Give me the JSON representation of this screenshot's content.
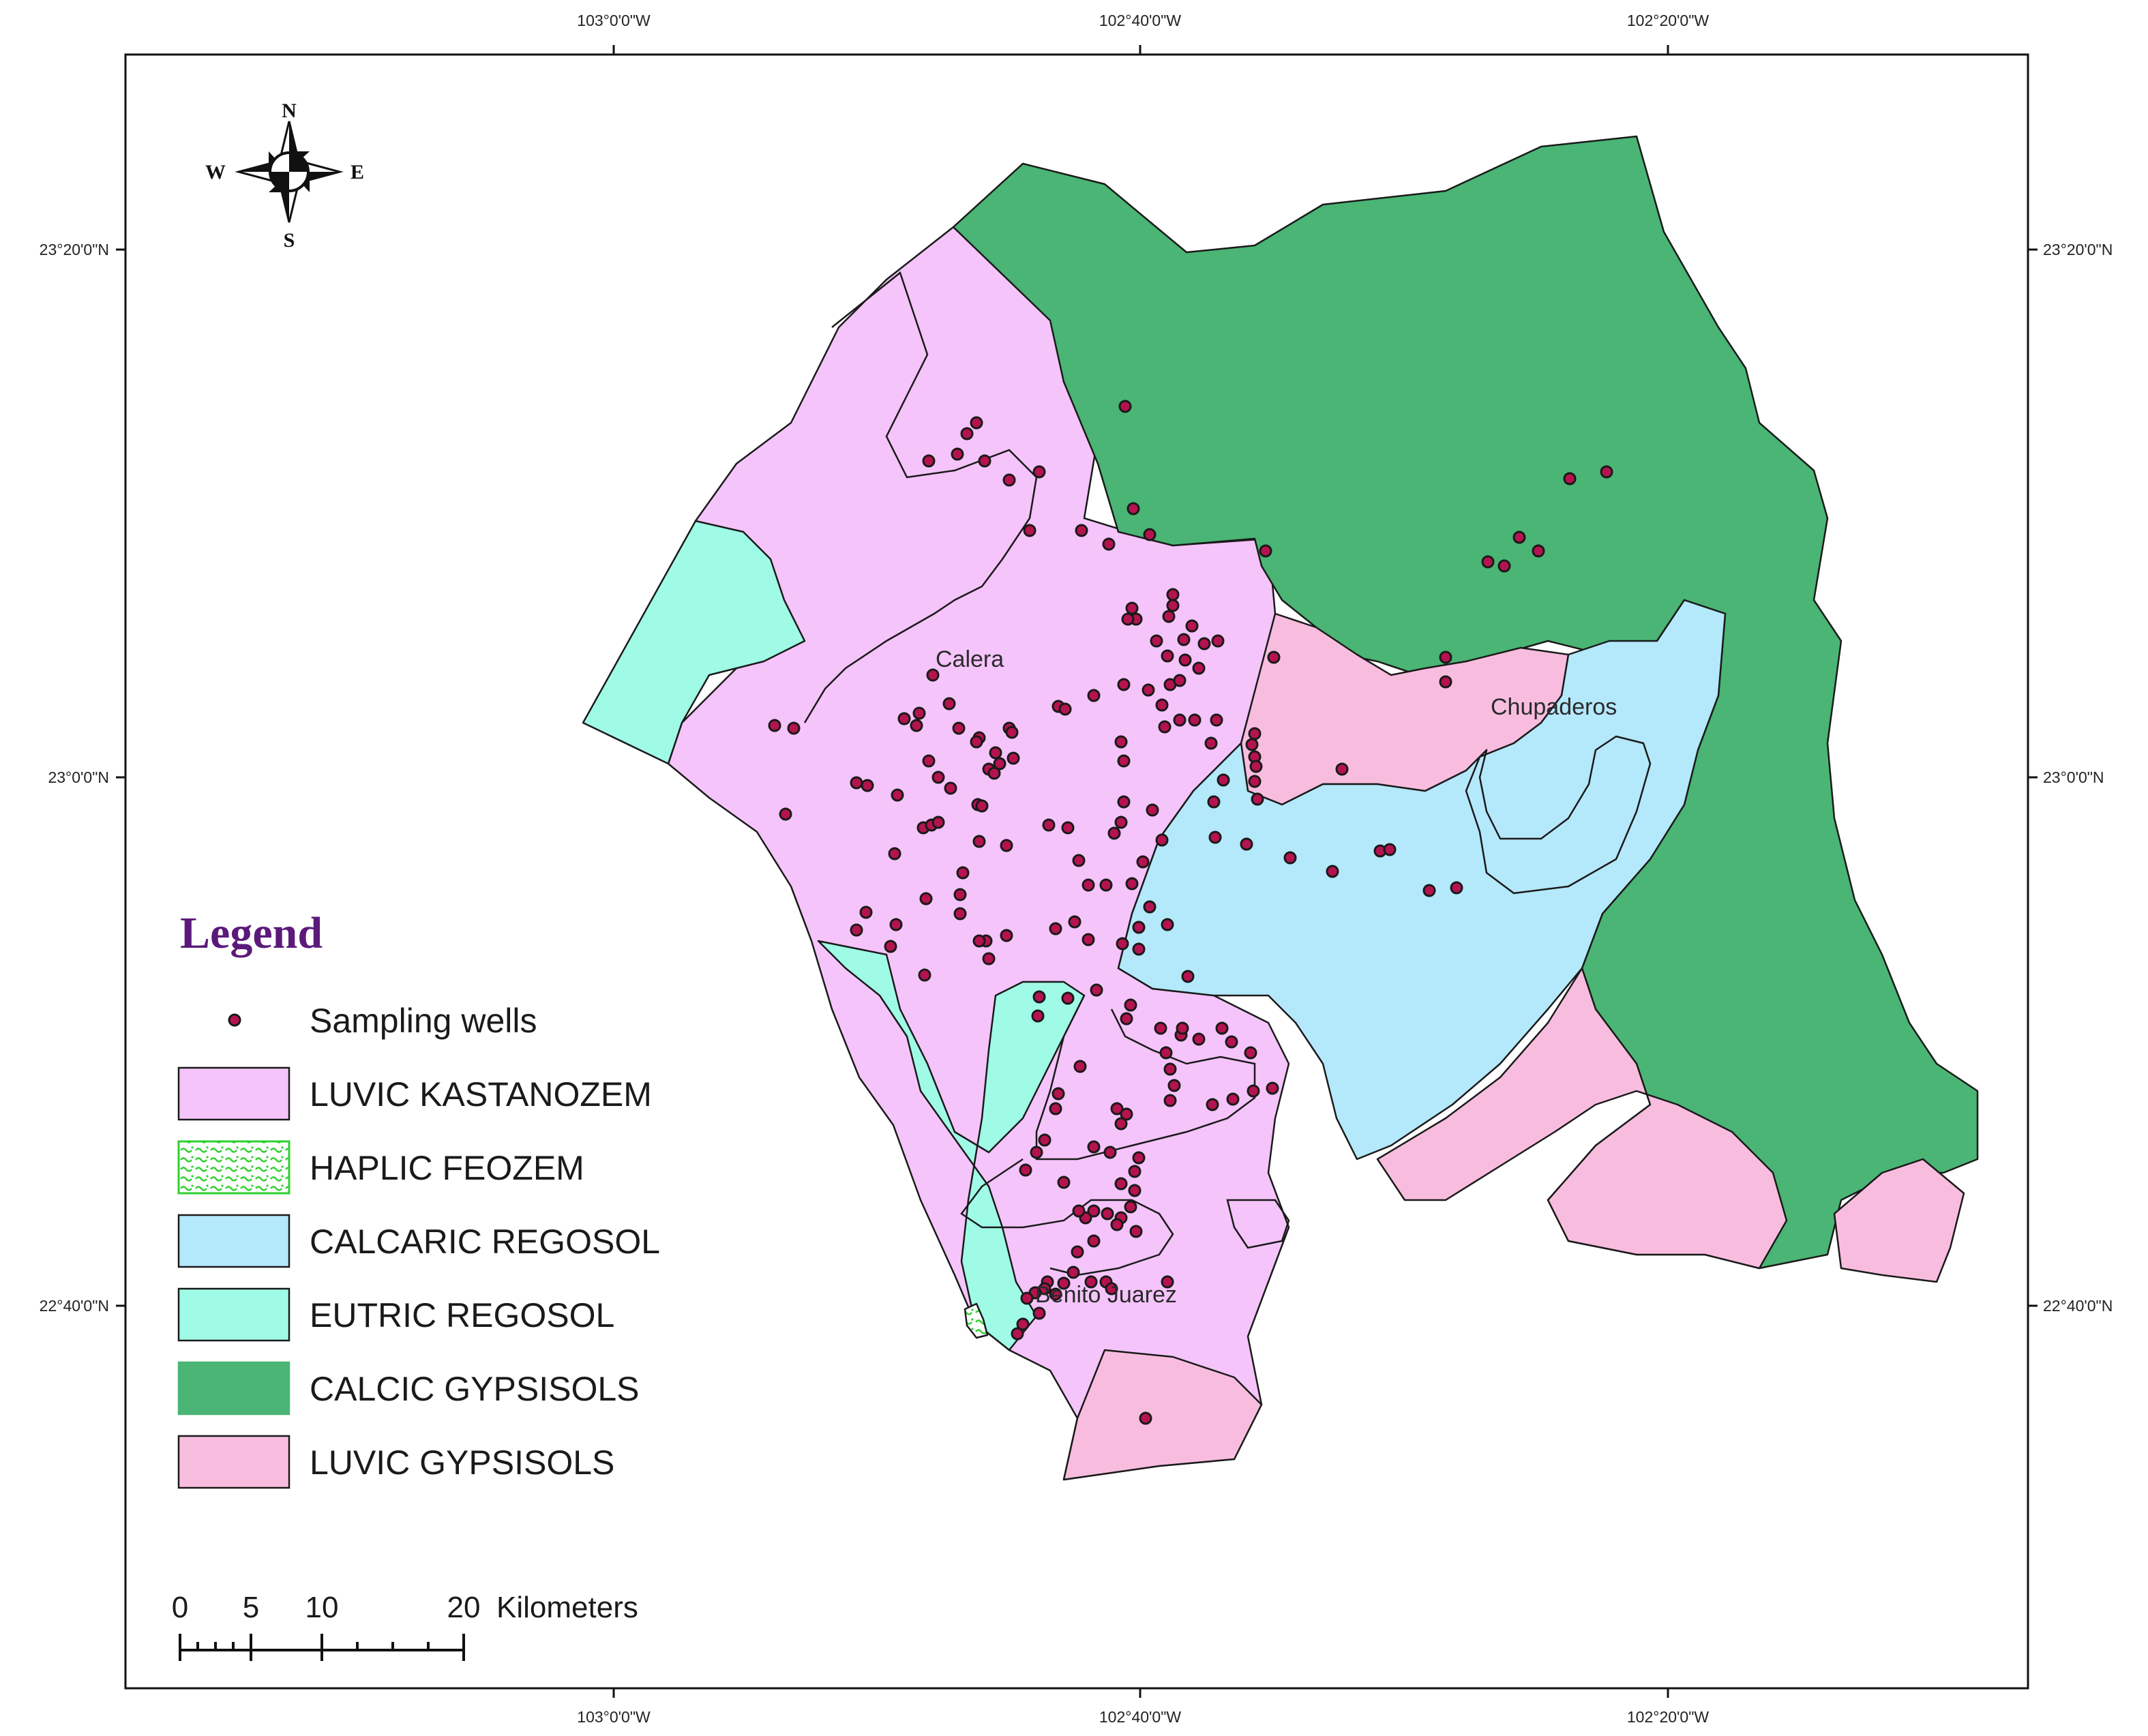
{
  "graticule": {
    "longitudes": [
      "103°0'0\"W",
      "102°40'0\"W",
      "102°20'0\"W"
    ],
    "latitudes": [
      "23°20'0\"N",
      "23°0'0\"N",
      "22°40'0\"N"
    ]
  },
  "compass": {
    "north": "N",
    "south": "S",
    "east": "E",
    "west": "W"
  },
  "places": {
    "calera": "Calera",
    "chupaderos": "Chupaderos",
    "benito_juarez": "Benito Juarez"
  },
  "legend": {
    "title": "Legend",
    "items": [
      {
        "label": "Sampling wells",
        "symbol": "point",
        "color": "#b5134f"
      },
      {
        "label": "LUVIC KASTANOZEM",
        "symbol": "fill",
        "color": "#f5c4fa"
      },
      {
        "label": "HAPLIC FEOZEM",
        "symbol": "pattern",
        "color": "#2fd02f"
      },
      {
        "label": "CALCARIC REGOSOL",
        "symbol": "fill",
        "color": "#b4e8fb"
      },
      {
        "label": "EUTRIC REGOSOL",
        "symbol": "fill",
        "color": "#9ffbe6"
      },
      {
        "label": "CALCIC GYPSISOLS",
        "symbol": "fill",
        "color": "#4ab574"
      },
      {
        "label": "LUVIC GYPSISOLS",
        "symbol": "fill",
        "color": "#f8bdde"
      }
    ]
  },
  "scale_bar": {
    "ticks": [
      "0",
      "5",
      "10",
      "20"
    ],
    "unit": "Kilometers"
  }
}
